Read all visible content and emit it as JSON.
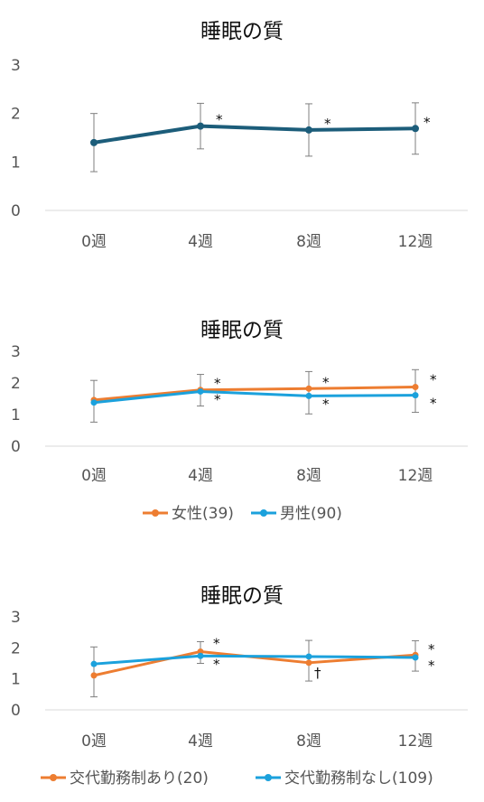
{
  "chart_data": [
    {
      "type": "line",
      "title": "睡眠の質",
      "categories": [
        "0週",
        "4週",
        "8週",
        "12週"
      ],
      "yticks": [
        "0",
        "1",
        "2",
        "3"
      ],
      "ylim": [
        0,
        3
      ],
      "grid": false,
      "legend": "none",
      "series": [
        {
          "color": "#1c5d7a",
          "values": [
            1.4,
            1.74,
            1.66,
            1.69
          ],
          "err_low": [
            0.8,
            1.27,
            1.12,
            1.16
          ],
          "err_high": [
            2.0,
            2.21,
            2.2,
            2.22
          ],
          "marks": [
            "",
            "*",
            "*",
            "*"
          ]
        }
      ]
    },
    {
      "type": "line",
      "title": "睡眠の質",
      "categories": [
        "0週",
        "4週",
        "8週",
        "12週"
      ],
      "yticks": [
        "0",
        "1",
        "2",
        "3"
      ],
      "ylim": [
        0,
        3
      ],
      "grid": false,
      "legend": "bottom",
      "series": [
        {
          "name": "女性(39)",
          "color": "#ed7d31",
          "values": [
            1.46,
            1.78,
            1.82,
            1.87
          ],
          "err_low": [
            0.76,
            1.27,
            1.02,
            1.07
          ],
          "err_high": [
            2.08,
            2.27,
            2.36,
            2.42
          ],
          "marks": [
            "",
            "*",
            "*",
            "*"
          ]
        },
        {
          "name": "男性(90)",
          "color": "#1ba1dc",
          "values": [
            1.38,
            1.73,
            1.59,
            1.61
          ],
          "err_low": [
            0.76,
            1.27,
            1.02,
            1.07
          ],
          "err_high": [
            2.08,
            2.27,
            2.36,
            2.42
          ],
          "marks": [
            "",
            "*",
            "*",
            "*"
          ]
        }
      ]
    },
    {
      "type": "line",
      "title": "睡眠の質",
      "categories": [
        "0週",
        "4週",
        "8週",
        "12週"
      ],
      "yticks": [
        "0",
        "1",
        "2",
        "3"
      ],
      "ylim": [
        0,
        3
      ],
      "grid": false,
      "legend": "bottom",
      "series": [
        {
          "name": "交代勤務制あり(20)",
          "color": "#ed7d31",
          "values": [
            1.11,
            1.88,
            1.52,
            1.77
          ],
          "err_low": [
            0.42,
            1.5,
            0.93,
            1.25
          ],
          "err_high": [
            2.03,
            2.2,
            2.24,
            2.23
          ],
          "marks": [
            "",
            "*",
            "†",
            "*"
          ]
        },
        {
          "name": "交代勤務制なし(109)",
          "color": "#1ba1dc",
          "values": [
            1.48,
            1.74,
            1.72,
            1.69
          ],
          "err_low": [
            0.42,
            1.5,
            0.93,
            1.25
          ],
          "err_high": [
            2.03,
            2.2,
            2.24,
            2.23
          ],
          "marks": [
            "",
            "*",
            "",
            "*"
          ]
        }
      ]
    }
  ]
}
